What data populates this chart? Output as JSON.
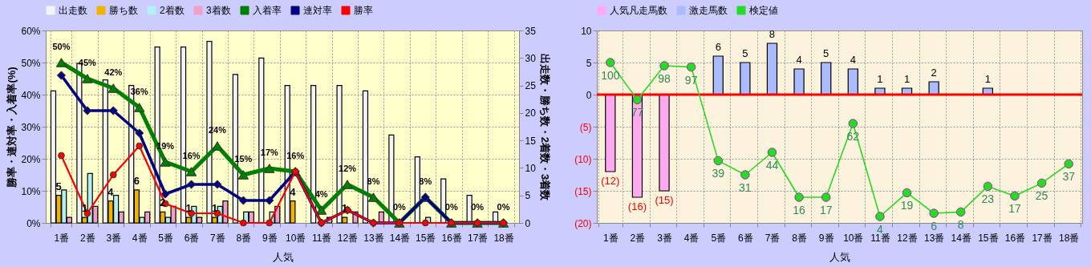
{
  "chart_data": [
    {
      "type": "bar",
      "xlabel": "人気",
      "ylabel": "勝率・連対率・入着率(%)",
      "y2label": "出走数・勝ち数・2着数・3着数",
      "categories": [
        "1番",
        "2番",
        "3番",
        "4番",
        "5番",
        "6番",
        "7番",
        "8番",
        "9番",
        "10番",
        "11番",
        "12番",
        "13番",
        "14番",
        "15番",
        "16番",
        "17番",
        "18番"
      ],
      "ylim": [
        0,
        60
      ],
      "yticks": [
        {
          "value": 0,
          "label": "0%"
        },
        {
          "value": 10,
          "label": "10%"
        },
        {
          "value": 20,
          "label": "20%"
        },
        {
          "value": 30,
          "label": "30%"
        },
        {
          "value": 40,
          "label": "40%"
        },
        {
          "value": 50,
          "label": "50%"
        },
        {
          "value": 60,
          "label": "60%"
        }
      ],
      "y2lim": [
        0,
        35
      ],
      "y2ticks": [
        0,
        5,
        10,
        15,
        20,
        25,
        30,
        35
      ],
      "grid": true,
      "legend": "top",
      "series": [
        {
          "name": "出走数",
          "color": "#f4f4f4",
          "axis": "y2",
          "values": [
            24,
            29,
            26,
            25,
            32,
            32,
            33,
            27,
            30,
            25,
            25,
            25,
            24,
            16,
            12,
            8,
            5,
            2
          ]
        },
        {
          "name": "勝ち数",
          "color": "#f0b400",
          "axis": "y2",
          "values": [
            5,
            1,
            4,
            6,
            2,
            1,
            1,
            0,
            0,
            4,
            0,
            1,
            0,
            0,
            0,
            0,
            0,
            0
          ],
          "value_labels": [
            "5",
            "1",
            "4",
            "6",
            "2",
            "1",
            "1",
            null,
            null,
            "4",
            null,
            "1",
            null,
            null,
            null,
            null,
            null,
            null
          ]
        },
        {
          "name": "2着数",
          "color": "#b4f0f0",
          "axis": "y2",
          "values": [
            6,
            9,
            5,
            1,
            1,
            3,
            3,
            2,
            2,
            0,
            0,
            0,
            0,
            0,
            1,
            0,
            0,
            0
          ]
        },
        {
          "name": "3着数",
          "color": "#f0a0c8",
          "axis": "y2",
          "values": [
            1,
            3,
            2,
            2,
            3,
            1,
            4,
            2,
            3,
            0,
            1,
            2,
            2,
            0,
            0,
            0,
            0,
            0
          ]
        },
        {
          "name": "入着率",
          "type": "line",
          "color": "#008000",
          "marker": "triangle",
          "values": [
            50,
            45,
            42,
            36,
            19,
            16,
            24,
            15,
            17,
            16,
            4,
            12,
            8,
            0,
            8,
            0,
            0,
            0
          ],
          "value_labels": [
            "50%",
            "45%",
            "42%",
            "36%",
            "19%",
            "16%",
            "24%",
            "15%",
            "17%",
            "16%",
            "4%",
            "12%",
            "8%",
            "0%",
            "8%",
            "0%",
            "0%",
            "0%"
          ]
        },
        {
          "name": "連対率",
          "type": "line",
          "color": "#000080",
          "marker": "diamond",
          "values": [
            46,
            35,
            35,
            28,
            9,
            12,
            12,
            7,
            7,
            16,
            0,
            4,
            0,
            0,
            8,
            0,
            0,
            0
          ]
        },
        {
          "name": "勝率",
          "type": "line",
          "color": "#ff0000",
          "marker": "circle",
          "values": [
            21,
            3,
            15,
            24,
            6,
            3,
            3,
            0,
            0,
            16,
            0,
            4,
            0,
            0,
            0,
            0,
            0,
            0
          ]
        }
      ]
    },
    {
      "type": "bar",
      "xlabel": "人気",
      "stacked": true,
      "categories": [
        "1番",
        "2番",
        "3番",
        "4番",
        "5番",
        "6番",
        "7番",
        "8番",
        "9番",
        "10番",
        "11番",
        "12番",
        "13番",
        "14番",
        "15番",
        "16番",
        "17番",
        "18番"
      ],
      "ylim": [
        -20,
        10
      ],
      "yticks": [
        10,
        5,
        0,
        {
          "value": -5,
          "label": "(5)"
        },
        {
          "value": -10,
          "label": "(10)"
        },
        {
          "value": -15,
          "label": "(15)"
        },
        {
          "value": -20,
          "label": "(20)"
        }
      ],
      "grid": true,
      "legend": "top",
      "ref_lines": [
        {
          "axis": "y",
          "value": 0,
          "color": "#ff0000"
        }
      ],
      "annotations": [
        {
          "text": "100",
          "x": "1番",
          "y": 5
        },
        {
          "text": "77",
          "x": "2番",
          "y": -0.8
        },
        {
          "text": "98",
          "x": "3番",
          "y": 4.5
        },
        {
          "text": "97",
          "x": "4番",
          "y": 4.3
        },
        {
          "text": "39",
          "x": "5番",
          "y": -10.3
        },
        {
          "text": "31",
          "x": "6番",
          "y": -12.5
        },
        {
          "text": "44",
          "x": "7番",
          "y": -9
        },
        {
          "text": "16",
          "x": "8番",
          "y": -16
        },
        {
          "text": "17",
          "x": "9番",
          "y": -16
        },
        {
          "text": "62",
          "x": "10番",
          "y": -4.5
        },
        {
          "text": "4",
          "x": "11番",
          "y": -19
        },
        {
          "text": "19",
          "x": "12番",
          "y": -15.3
        },
        {
          "text": "6",
          "x": "13番",
          "y": -18.5
        },
        {
          "text": "8",
          "x": "14番",
          "y": -18.3
        },
        {
          "text": "23",
          "x": "15番",
          "y": -14.3
        },
        {
          "text": "17",
          "x": "16番",
          "y": -15.8
        },
        {
          "text": "25",
          "x": "17番",
          "y": -13.8
        },
        {
          "text": "37",
          "x": "18番",
          "y": -10.8
        }
      ],
      "series": [
        {
          "name": "人気凡走馬数",
          "color": "#ffaaf0",
          "values": [
            -12,
            -16,
            -15,
            null,
            null,
            null,
            null,
            null,
            null,
            null,
            null,
            null,
            null,
            null,
            null,
            null,
            null,
            null
          ],
          "value_labels": [
            "(12)",
            "(16)",
            "(15)",
            null,
            null,
            null,
            null,
            null,
            null,
            null,
            null,
            null,
            null,
            null,
            null,
            null,
            null,
            null
          ]
        },
        {
          "name": "激走馬数",
          "color": "#aabbff",
          "values": [
            null,
            null,
            null,
            null,
            6,
            5,
            8,
            4,
            5,
            4,
            1,
            1,
            2,
            null,
            1,
            null,
            null,
            null
          ],
          "value_labels": [
            null,
            null,
            null,
            null,
            "6",
            "5",
            "8",
            "4",
            "5",
            "4",
            "1",
            "1",
            "2",
            null,
            "1",
            null,
            null,
            null
          ]
        },
        {
          "name": "検定値",
          "type": "line",
          "color": "#22dd22",
          "marker": "circle",
          "values": [
            5,
            -0.8,
            4.5,
            4.3,
            -10.3,
            -12.5,
            -9,
            -16,
            -16,
            -4.5,
            -19,
            -15.3,
            -18.5,
            -18.3,
            -14.3,
            -15.8,
            -13.8,
            -10.8
          ]
        }
      ]
    }
  ]
}
